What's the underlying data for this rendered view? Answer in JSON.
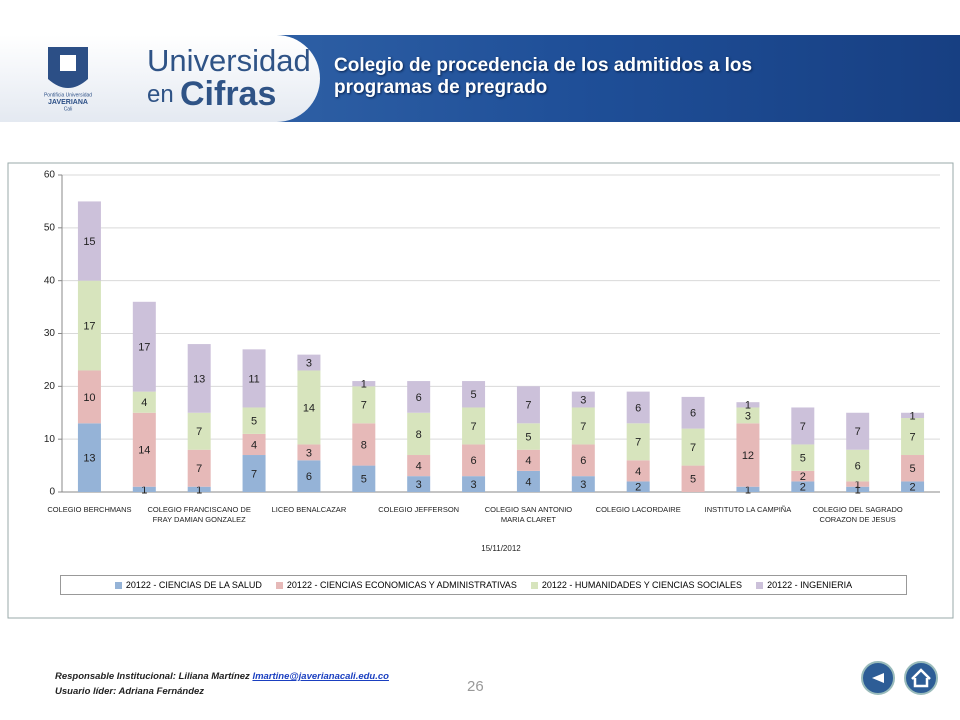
{
  "header": {
    "institution": [
      "Pontificia Universidad",
      "JAVERIANA",
      "Cali"
    ],
    "logo": [
      "Universidad",
      "en",
      "Cifras"
    ],
    "title": "Colegio de procedencia de los admitidos a los programas de pregrado"
  },
  "chart_data": {
    "type": "stacked_bar",
    "x_label": "15/11/2012",
    "categories": [
      "COLEGIO BERCHMANS",
      null,
      "COLEGIO FRANCISCANO DE FRAY DAMIAN GONZALEZ",
      null,
      "LICEO BENALCAZAR",
      null,
      "COLEGIO JEFFERSON",
      null,
      "COLEGIO SAN ANTONIO MARIA CLARET",
      null,
      "COLEGIO LACORDAIRE",
      null,
      "INSTITUTO LA CAMPIÑA",
      null,
      "COLEGIO DEL SAGRADO CORAZON DE JESUS",
      null
    ],
    "series": [
      {
        "name": "20122 - CIENCIAS DE LA SALUD",
        "color": "#95b3d7",
        "values": [
          13,
          1,
          1,
          7,
          6,
          5,
          3,
          3,
          4,
          3,
          2,
          null,
          1,
          2,
          1,
          2
        ]
      },
      {
        "name": "20122 - CIENCIAS ECONOMICAS Y ADMINISTRATIVAS",
        "color": "#e6b9b8",
        "values": [
          10,
          14,
          7,
          4,
          3,
          8,
          4,
          6,
          4,
          6,
          4,
          5,
          12,
          2,
          1,
          5
        ]
      },
      {
        "name": "20122 - HUMANIDADES Y CIENCIAS SOCIALES",
        "color": "#d7e4bd",
        "values": [
          17,
          4,
          7,
          5,
          14,
          7,
          8,
          7,
          5,
          7,
          7,
          7,
          3,
          5,
          6,
          7
        ]
      },
      {
        "name": "20122 - INGENIERIA",
        "color": "#ccc1da",
        "values": [
          15,
          17,
          13,
          11,
          3,
          1,
          6,
          5,
          7,
          3,
          6,
          6,
          1,
          7,
          7,
          1
        ]
      }
    ],
    "ylim": [
      0,
      60
    ],
    "yticks": [
      0,
      10,
      20,
      30,
      40,
      50,
      60
    ],
    "grid": true,
    "legend": "bottom"
  },
  "footer": {
    "responsible_label": "Responsable Institucional: Liliana Martínez",
    "email": "lmartine@javerianacali.edu.co",
    "leader": "Usuario líder: Adriana Fernández",
    "page": "26"
  }
}
